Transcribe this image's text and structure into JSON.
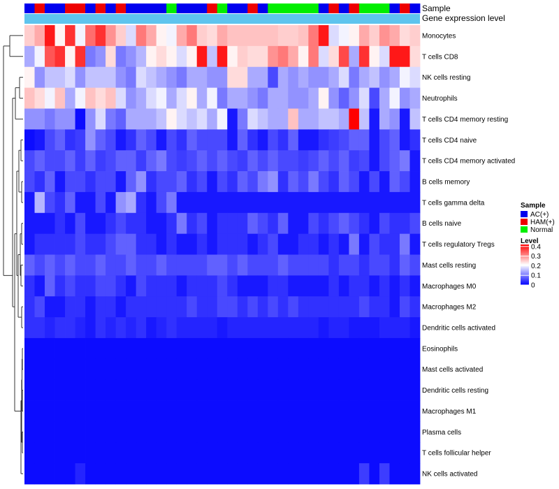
{
  "chart_data": {
    "type": "heatmap",
    "annotation_rows": [
      "Sample",
      "Gene expression level"
    ],
    "sample_groups": [
      "AC(+)",
      "HAM(+)",
      "AC(+)",
      "AC(+)",
      "HAM(+)",
      "HAM(+)",
      "AC(+)",
      "HAM(+)",
      "AC(+)",
      "HAM(+)",
      "AC(+)",
      "AC(+)",
      "AC(+)",
      "AC(+)",
      "Normal",
      "AC(+)",
      "AC(+)",
      "AC(+)",
      "HAM(+)",
      "Normal",
      "AC(+)",
      "AC(+)",
      "HAM(+)",
      "AC(+)",
      "Normal",
      "Normal",
      "Normal",
      "Normal",
      "Normal",
      "AC(+)",
      "HAM(+)",
      "AC(+)",
      "HAM(+)",
      "Normal",
      "Normal",
      "Normal",
      "AC(+)",
      "HAM(+)",
      "AC(+)"
    ],
    "rows": [
      {
        "name": "Monocytes",
        "values": [
          0.25,
          0.28,
          0.4,
          0.22,
          0.38,
          0.2,
          0.33,
          0.38,
          0.3,
          0.25,
          0.18,
          0.32,
          0.28,
          0.22,
          0.2,
          0.28,
          0.32,
          0.25,
          0.24,
          0.28,
          0.26,
          0.26,
          0.26,
          0.26,
          0.26,
          0.25,
          0.25,
          0.26,
          0.32,
          0.4,
          0.18,
          0.2,
          0.22,
          0.28,
          0.25,
          0.3,
          0.28,
          0.24,
          0.25
        ]
      },
      {
        "name": "T cells CD8",
        "values": [
          0.14,
          0.2,
          0.35,
          0.38,
          0.22,
          0.38,
          0.1,
          0.12,
          0.24,
          0.1,
          0.12,
          0.15,
          0.22,
          0.24,
          0.22,
          0.18,
          0.22,
          0.4,
          0.16,
          0.4,
          0.22,
          0.25,
          0.24,
          0.24,
          0.3,
          0.32,
          0.28,
          0.22,
          0.32,
          0.18,
          0.24,
          0.36,
          0.14,
          0.38,
          0.22,
          0.18,
          0.4,
          0.4,
          0.24
        ]
      },
      {
        "name": "NK cells resting",
        "values": [
          0.22,
          0.12,
          0.16,
          0.16,
          0.18,
          0.12,
          0.16,
          0.16,
          0.16,
          0.12,
          0.1,
          0.18,
          0.16,
          0.14,
          0.12,
          0.1,
          0.14,
          0.14,
          0.12,
          0.12,
          0.24,
          0.24,
          0.14,
          0.14,
          0.06,
          0.14,
          0.12,
          0.14,
          0.12,
          0.12,
          0.14,
          0.18,
          0.1,
          0.14,
          0.16,
          0.12,
          0.14,
          0.2,
          0.18
        ]
      },
      {
        "name": "Neutrophils",
        "values": [
          0.26,
          0.24,
          0.2,
          0.26,
          0.14,
          0.2,
          0.26,
          0.24,
          0.26,
          0.18,
          0.12,
          0.14,
          0.18,
          0.2,
          0.14,
          0.18,
          0.22,
          0.14,
          0.2,
          0.1,
          0.14,
          0.14,
          0.12,
          0.1,
          0.14,
          0.14,
          0.12,
          0.12,
          0.14,
          0.22,
          0.12,
          0.08,
          0.12,
          0.18,
          0.06,
          0.14,
          0.2,
          0.12,
          0.14
        ]
      },
      {
        "name": "T cells CD4 memory resting",
        "values": [
          0.12,
          0.12,
          0.1,
          0.12,
          0.12,
          0.01,
          0.12,
          0.18,
          0.1,
          0.08,
          0.14,
          0.14,
          0.14,
          0.16,
          0.22,
          0.18,
          0.16,
          0.18,
          0.14,
          0.2,
          0.02,
          0.1,
          0.18,
          0.16,
          0.14,
          0.14,
          0.26,
          0.14,
          0.14,
          0.16,
          0.16,
          0.14,
          0.42,
          0.16,
          0.02,
          0.14,
          0.12,
          0.02,
          0.16
        ]
      },
      {
        "name": "T cells CD4 naive",
        "values": [
          0.01,
          0.02,
          0.06,
          0.08,
          0.04,
          0.05,
          0.12,
          0.08,
          0.06,
          0.02,
          0.04,
          0.08,
          0.06,
          0.02,
          0.06,
          0.04,
          0.08,
          0.06,
          0.06,
          0.06,
          0.02,
          0.08,
          0.04,
          0.02,
          0.06,
          0.04,
          0.08,
          0.02,
          0.02,
          0.04,
          0.05,
          0.06,
          0.08,
          0.08,
          0.02,
          0.06,
          0.08,
          0.02,
          0.04
        ]
      },
      {
        "name": "T cells CD4 memory activated",
        "values": [
          0.06,
          0.08,
          0.06,
          0.06,
          0.08,
          0.05,
          0.08,
          0.05,
          0.06,
          0.08,
          0.08,
          0.05,
          0.08,
          0.1,
          0.06,
          0.05,
          0.06,
          0.08,
          0.06,
          0.08,
          0.06,
          0.05,
          0.08,
          0.06,
          0.08,
          0.06,
          0.06,
          0.05,
          0.06,
          0.08,
          0.06,
          0.08,
          0.05,
          0.06,
          0.02,
          0.06,
          0.08,
          0.1,
          0.02
        ]
      },
      {
        "name": "B cells memory",
        "values": [
          0.06,
          0.04,
          0.08,
          0.02,
          0.06,
          0.06,
          0.04,
          0.06,
          0.06,
          0.02,
          0.08,
          0.12,
          0.04,
          0.06,
          0.06,
          0.08,
          0.04,
          0.06,
          0.02,
          0.06,
          0.04,
          0.08,
          0.06,
          0.1,
          0.12,
          0.04,
          0.08,
          0.06,
          0.1,
          0.06,
          0.04,
          0.08,
          0.06,
          0.02,
          0.06,
          0.02,
          0.08,
          0.06,
          0.02
        ]
      },
      {
        "name": "T cells gamma delta",
        "values": [
          0.02,
          0.15,
          0.06,
          0.04,
          0.08,
          0.02,
          0.02,
          0.06,
          0.02,
          0.12,
          0.14,
          0.04,
          0.02,
          0.06,
          0.1,
          0.02,
          0.02,
          0.02,
          0.02,
          0.02,
          0.02,
          0.02,
          0.02,
          0.02,
          0.02,
          0.02,
          0.02,
          0.02,
          0.02,
          0.02,
          0.02,
          0.02,
          0.02,
          0.02,
          0.02,
          0.02,
          0.02,
          0.02,
          0.02
        ]
      },
      {
        "name": "B cells naive",
        "values": [
          0.02,
          0.02,
          0.02,
          0.04,
          0.02,
          0.06,
          0.02,
          0.02,
          0.04,
          0.06,
          0.04,
          0.04,
          0.02,
          0.02,
          0.04,
          0.1,
          0.04,
          0.06,
          0.02,
          0.04,
          0.04,
          0.04,
          0.08,
          0.06,
          0.04,
          0.08,
          0.02,
          0.02,
          0.06,
          0.04,
          0.06,
          0.08,
          0.06,
          0.04,
          0.02,
          0.06,
          0.04,
          0.04,
          0.06
        ]
      },
      {
        "name": "T cells regulatory  Tregs",
        "values": [
          0.02,
          0.04,
          0.04,
          0.04,
          0.04,
          0.06,
          0.04,
          0.04,
          0.06,
          0.08,
          0.08,
          0.04,
          0.04,
          0.02,
          0.04,
          0.02,
          0.02,
          0.04,
          0.02,
          0.04,
          0.04,
          0.04,
          0.02,
          0.04,
          0.06,
          0.02,
          0.02,
          0.04,
          0.04,
          0.02,
          0.04,
          0.02,
          0.1,
          0.02,
          0.06,
          0.04,
          0.04,
          0.1,
          0.02
        ]
      },
      {
        "name": "Mast cells resting",
        "values": [
          0.08,
          0.06,
          0.08,
          0.06,
          0.08,
          0.06,
          0.06,
          0.08,
          0.06,
          0.06,
          0.08,
          0.06,
          0.06,
          0.08,
          0.06,
          0.06,
          0.06,
          0.06,
          0.08,
          0.08,
          0.06,
          0.08,
          0.06,
          0.06,
          0.06,
          0.08,
          0.06,
          0.06,
          0.06,
          0.06,
          0.04,
          0.06,
          0.06,
          0.04,
          0.06,
          0.06,
          0.04,
          0.08,
          0.06
        ]
      },
      {
        "name": "Macrophages M0",
        "values": [
          0.04,
          0.02,
          0.08,
          0.04,
          0.06,
          0.04,
          0.04,
          0.06,
          0.06,
          0.04,
          0.02,
          0.06,
          0.04,
          0.04,
          0.04,
          0.02,
          0.04,
          0.04,
          0.04,
          0.06,
          0.04,
          0.02,
          0.02,
          0.02,
          0.04,
          0.04,
          0.02,
          0.02,
          0.02,
          0.02,
          0.04,
          0.02,
          0.04,
          0.04,
          0.02,
          0.04,
          0.02,
          0.04,
          0.02
        ]
      },
      {
        "name": "Macrophages M2",
        "values": [
          0.04,
          0.06,
          0.02,
          0.02,
          0.04,
          0.04,
          0.02,
          0.04,
          0.04,
          0.02,
          0.04,
          0.04,
          0.04,
          0.04,
          0.04,
          0.04,
          0.06,
          0.04,
          0.04,
          0.06,
          0.06,
          0.04,
          0.06,
          0.04,
          0.06,
          0.04,
          0.06,
          0.04,
          0.04,
          0.04,
          0.04,
          0.04,
          0.04,
          0.06,
          0.04,
          0.04,
          0.02,
          0.06,
          0.04
        ]
      },
      {
        "name": "Dendritic cells activated",
        "values": [
          0.04,
          0.04,
          0.03,
          0.04,
          0.04,
          0.03,
          0.02,
          0.04,
          0.03,
          0.04,
          0.03,
          0.04,
          0.02,
          0.03,
          0.04,
          0.03,
          0.03,
          0.03,
          0.03,
          0.02,
          0.03,
          0.03,
          0.03,
          0.03,
          0.03,
          0.03,
          0.03,
          0.03,
          0.03,
          0.02,
          0.03,
          0.03,
          0.02,
          0.02,
          0.02,
          0.03,
          0.03,
          0.03,
          0.02
        ]
      },
      {
        "name": "Eosinophils",
        "values": [
          0.01,
          0.01,
          0.01,
          0.01,
          0.01,
          0.01,
          0.01,
          0.01,
          0.01,
          0.01,
          0.01,
          0.01,
          0.01,
          0.01,
          0.01,
          0.01,
          0.01,
          0.01,
          0.01,
          0.01,
          0.01,
          0.01,
          0.01,
          0.01,
          0.01,
          0.01,
          0.01,
          0.01,
          0.01,
          0.01,
          0.01,
          0.01,
          0.01,
          0.01,
          0.01,
          0.01,
          0.01,
          0.01,
          0.01
        ]
      },
      {
        "name": "Mast cells activated",
        "values": [
          0.01,
          0.01,
          0.01,
          0.01,
          0.01,
          0.01,
          0.01,
          0.01,
          0.01,
          0.01,
          0.01,
          0.01,
          0.01,
          0.01,
          0.01,
          0.01,
          0.01,
          0.01,
          0.01,
          0.01,
          0.01,
          0.01,
          0.01,
          0.01,
          0.01,
          0.01,
          0.01,
          0.01,
          0.01,
          0.01,
          0.01,
          0.01,
          0.01,
          0.01,
          0.01,
          0.01,
          0.01,
          0.01,
          0.01
        ]
      },
      {
        "name": "Dendritic cells resting",
        "values": [
          0.01,
          0.01,
          0.01,
          0.01,
          0.01,
          0.01,
          0.01,
          0.01,
          0.01,
          0.01,
          0.01,
          0.01,
          0.01,
          0.01,
          0.01,
          0.01,
          0.01,
          0.01,
          0.01,
          0.01,
          0.01,
          0.01,
          0.01,
          0.01,
          0.01,
          0.01,
          0.01,
          0.01,
          0.01,
          0.01,
          0.01,
          0.01,
          0.01,
          0.01,
          0.01,
          0.01,
          0.01,
          0.01,
          0.01
        ]
      },
      {
        "name": "Macrophages M1",
        "values": [
          0.01,
          0.01,
          0.01,
          0.01,
          0.01,
          0.01,
          0.01,
          0.01,
          0.01,
          0.01,
          0.01,
          0.01,
          0.01,
          0.01,
          0.01,
          0.01,
          0.01,
          0.01,
          0.01,
          0.01,
          0.01,
          0.01,
          0.01,
          0.01,
          0.01,
          0.01,
          0.01,
          0.01,
          0.01,
          0.01,
          0.01,
          0.01,
          0.01,
          0.01,
          0.01,
          0.01,
          0.01,
          0.01,
          0.01
        ]
      },
      {
        "name": "Plasma cells",
        "values": [
          0.01,
          0.01,
          0.01,
          0.01,
          0.01,
          0.01,
          0.01,
          0.01,
          0.01,
          0.01,
          0.01,
          0.01,
          0.01,
          0.01,
          0.01,
          0.01,
          0.01,
          0.01,
          0.01,
          0.01,
          0.01,
          0.01,
          0.01,
          0.01,
          0.01,
          0.01,
          0.01,
          0.01,
          0.01,
          0.01,
          0.01,
          0.01,
          0.01,
          0.01,
          0.01,
          0.01,
          0.01,
          0.01,
          0.01
        ]
      },
      {
        "name": "T cells follicular helper",
        "values": [
          0.01,
          0.01,
          0.01,
          0.01,
          0.01,
          0.01,
          0.01,
          0.01,
          0.01,
          0.01,
          0.01,
          0.01,
          0.01,
          0.01,
          0.01,
          0.01,
          0.01,
          0.01,
          0.01,
          0.01,
          0.01,
          0.01,
          0.01,
          0.01,
          0.01,
          0.01,
          0.01,
          0.01,
          0.01,
          0.01,
          0.01,
          0.01,
          0.01,
          0.01,
          0.01,
          0.01,
          0.01,
          0.01,
          0.01
        ]
      },
      {
        "name": "NK cells activated",
        "values": [
          0.01,
          0.01,
          0.01,
          0.01,
          0.01,
          0.03,
          0.01,
          0.01,
          0.01,
          0.01,
          0.01,
          0.01,
          0.01,
          0.01,
          0.01,
          0.01,
          0.01,
          0.01,
          0.01,
          0.01,
          0.01,
          0.01,
          0.01,
          0.01,
          0.01,
          0.01,
          0.01,
          0.01,
          0.01,
          0.01,
          0.01,
          0.01,
          0.01,
          0.05,
          0.01,
          0.05,
          0.01,
          0.01,
          0.01
        ]
      }
    ],
    "legend_sample": {
      "title": "Sample",
      "entries": [
        {
          "label": "AC(+)",
          "color": "#0000ee"
        },
        {
          "label": "HAM(+)",
          "color": "#ee0000"
        },
        {
          "label": "Normal",
          "color": "#00ee00"
        }
      ]
    },
    "legend_level": {
      "title": "Level",
      "ticks": [
        "0.4",
        "0.3",
        "0.2",
        "0.1",
        "0"
      ],
      "tick_values": [
        0.4,
        0.3,
        0.2,
        0.1,
        0
      ],
      "range": [
        0,
        0.42
      ]
    },
    "colorscale": {
      "low": "#0000ff",
      "mid": "#ffffff",
      "high": "#ff0000",
      "mid_value": 0.21
    },
    "gene_expression_color": "#5ec4ee"
  }
}
